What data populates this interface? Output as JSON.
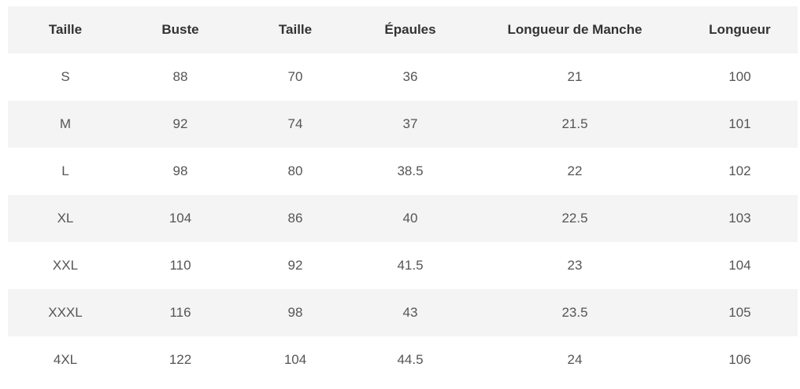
{
  "table": {
    "header": [
      "Taille",
      "Buste",
      "Taille",
      "Épaules",
      "Longueur de Manche",
      "Longueur"
    ],
    "rows": [
      [
        "S",
        88,
        70,
        36,
        21,
        100
      ],
      [
        "M",
        92,
        74,
        37,
        21.5,
        101
      ],
      [
        "L",
        98,
        80,
        38.5,
        22,
        102
      ],
      [
        "XL",
        104,
        86,
        40,
        22.5,
        103
      ],
      [
        "XXL",
        110,
        92,
        41.5,
        23,
        104
      ],
      [
        "XXXL",
        116,
        98,
        43,
        23.5,
        105
      ],
      [
        "4XL",
        122,
        104,
        44.5,
        24,
        106
      ]
    ]
  }
}
